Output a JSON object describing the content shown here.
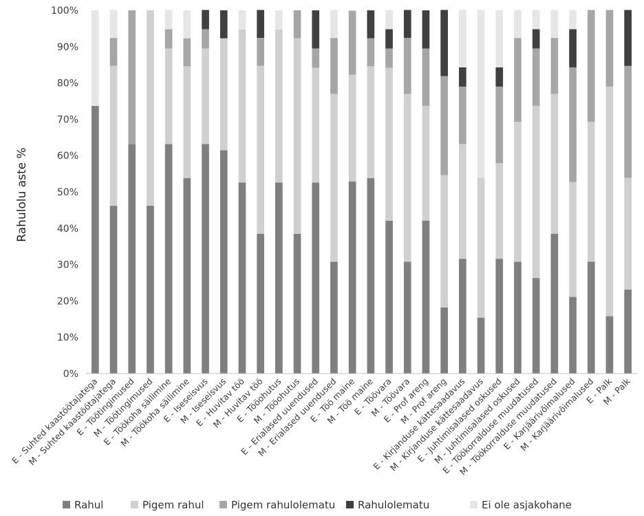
{
  "chart_data": {
    "type": "bar",
    "stacked": true,
    "title": "",
    "xlabel": "",
    "ylabel": "Rahulolu aste %",
    "ylim": [
      0,
      100
    ],
    "y_ticks": [
      "0%",
      "10%",
      "20%",
      "30%",
      "40%",
      "50%",
      "60%",
      "70%",
      "80%",
      "90%",
      "100%"
    ],
    "grid": false,
    "legend_position": "bottom",
    "categories": [
      "E - Suhted kaastöötajatega",
      "M - Suhted kaastöötajatega",
      "E - Töötingimused",
      "M - Töötingimused",
      "E - Töökoha säilimine",
      "M - Töökoha säilimine",
      "E - Iseseisvus",
      "M - Iseseisvus",
      "E - Huvitav töö",
      "M - Huvitav töö",
      "E - Tööohutus",
      "M - Tööohutus",
      "E - Erialased uuendused",
      "M - Erialased uuendused",
      "E - Töö maine",
      "M - Töö maine",
      "E - Töövara",
      "M - Töövara",
      "E - Prof areng",
      "M - Prof areng",
      "E - Kirjanduse kättesaadavus",
      "M - Kirjanduse kättesaadavus",
      "E - Juhtimisalased oskused",
      "M - Juhtimisalased oskused",
      "E - Töökorralduse muudatused",
      "M - Töökorralduse muudatused",
      "E - Karjäärivõimalused",
      "M - Karjäärivõimalused",
      "E - Palk",
      "M - Palk"
    ],
    "series": [
      {
        "name": "Rahul",
        "color": "#7f7f7f",
        "values": [
          73.7,
          46.2,
          63.2,
          46.2,
          63.2,
          53.8,
          63.2,
          61.5,
          52.6,
          38.5,
          52.6,
          38.5,
          52.6,
          30.8,
          52.9,
          53.8,
          42.1,
          30.8,
          42.1,
          18.2,
          31.6,
          15.4,
          31.6,
          30.8,
          26.3,
          38.5,
          21.1,
          30.8,
          15.8,
          23.1
        ]
      },
      {
        "name": "Pigem rahul",
        "color": "#d0d0d0",
        "values": [
          0,
          38.5,
          0,
          53.8,
          26.3,
          30.8,
          26.3,
          30.8,
          42.1,
          46.2,
          42.1,
          53.8,
          31.6,
          46.2,
          29.4,
          30.8,
          42.1,
          46.2,
          31.6,
          36.4,
          31.6,
          38.5,
          26.3,
          38.5,
          47.4,
          38.5,
          31.6,
          38.5,
          63.2,
          30.8
        ]
      },
      {
        "name": "Pigem rahulolematu",
        "color": "#a6a6a6",
        "values": [
          0,
          7.7,
          36.8,
          0,
          5.3,
          7.7,
          5.3,
          0,
          0,
          7.7,
          0,
          7.7,
          5.3,
          15.4,
          17.6,
          7.7,
          5.3,
          15.4,
          15.8,
          27.3,
          15.8,
          0,
          21.1,
          23.1,
          15.8,
          15.4,
          31.6,
          30.8,
          21.1,
          30.8
        ]
      },
      {
        "name": "Rahulolematu",
        "color": "#404040",
        "values": [
          0,
          0,
          0,
          0,
          0,
          0,
          5.3,
          7.7,
          0,
          7.7,
          0,
          0,
          10.5,
          0,
          0,
          7.7,
          5.3,
          7.7,
          10.5,
          18.2,
          5.3,
          0,
          5.3,
          0,
          5.3,
          0,
          10.5,
          0,
          0,
          15.4
        ]
      },
      {
        "name": "Ei ole asjakohane",
        "color": "#e6e6e6",
        "values": [
          26.3,
          7.7,
          0,
          0,
          5.3,
          7.7,
          0,
          0,
          5.3,
          0,
          5.3,
          0,
          0,
          7.7,
          0,
          0,
          5.3,
          0,
          0,
          0,
          15.8,
          46.2,
          15.8,
          7.7,
          5.3,
          7.7,
          5.3,
          0,
          0,
          0
        ]
      }
    ]
  }
}
